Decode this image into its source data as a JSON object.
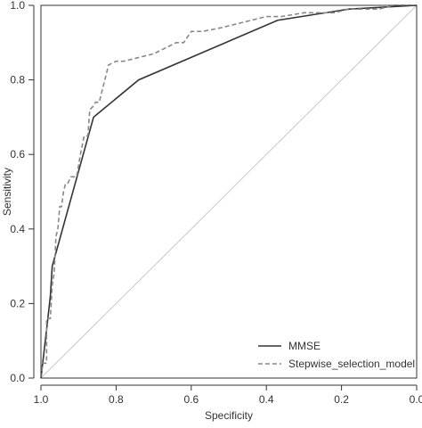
{
  "chart_data": {
    "type": "line",
    "title": "",
    "xlabel": "Specificity",
    "ylabel": "Sensitivity",
    "x_reversed": true,
    "xlim": [
      1.0,
      0.0
    ],
    "ylim": [
      0.0,
      1.0
    ],
    "x_ticks": [
      1.0,
      0.8,
      0.6,
      0.4,
      0.2,
      0.0
    ],
    "x_tick_labels": [
      "1.0",
      "0.8",
      "0.6",
      "0.4",
      "0.2",
      "0.0"
    ],
    "y_ticks": [
      0.0,
      0.2,
      0.4,
      0.6,
      0.8,
      1.0
    ],
    "y_tick_labels": [
      "0.0",
      "0.2",
      "0.4",
      "0.6",
      "0.8",
      "1.0"
    ],
    "grid": false,
    "legend_position": "bottom-right",
    "reference_line": {
      "from": [
        1.0,
        0.0
      ],
      "to": [
        0.0,
        1.0
      ],
      "color": "#c8c8c8"
    },
    "series": [
      {
        "name": "MMSE",
        "style": "solid",
        "color": "#333333",
        "x": [
          1.0,
          0.985,
          0.975,
          0.97,
          0.86,
          0.74,
          0.37,
          0.18,
          0.0
        ],
        "y": [
          0.0,
          0.13,
          0.22,
          0.3,
          0.7,
          0.8,
          0.96,
          0.99,
          1.0
        ]
      },
      {
        "name": "Stepwise_selection_model",
        "style": "dashed",
        "color": "#888888",
        "x": [
          1.0,
          0.995,
          0.985,
          0.985,
          0.975,
          0.97,
          0.965,
          0.96,
          0.955,
          0.95,
          0.945,
          0.94,
          0.935,
          0.93,
          0.92,
          0.905,
          0.895,
          0.885,
          0.875,
          0.87,
          0.86,
          0.855,
          0.845,
          0.835,
          0.83,
          0.82,
          0.8,
          0.78,
          0.74,
          0.7,
          0.68,
          0.66,
          0.64,
          0.62,
          0.6,
          0.57,
          0.52,
          0.48,
          0.44,
          0.4,
          0.36,
          0.3,
          0.26,
          0.22,
          0.18,
          0.14,
          0.1,
          0.06,
          0.04,
          0.0
        ],
        "y": [
          0.0,
          0.04,
          0.04,
          0.16,
          0.16,
          0.25,
          0.28,
          0.38,
          0.4,
          0.46,
          0.46,
          0.5,
          0.52,
          0.52,
          0.54,
          0.54,
          0.6,
          0.65,
          0.65,
          0.72,
          0.73,
          0.74,
          0.74,
          0.78,
          0.8,
          0.84,
          0.85,
          0.85,
          0.86,
          0.87,
          0.88,
          0.89,
          0.9,
          0.9,
          0.93,
          0.93,
          0.94,
          0.95,
          0.96,
          0.97,
          0.97,
          0.98,
          0.98,
          0.98,
          0.99,
          0.99,
          0.99,
          1.0,
          1.0,
          1.0
        ]
      }
    ]
  }
}
